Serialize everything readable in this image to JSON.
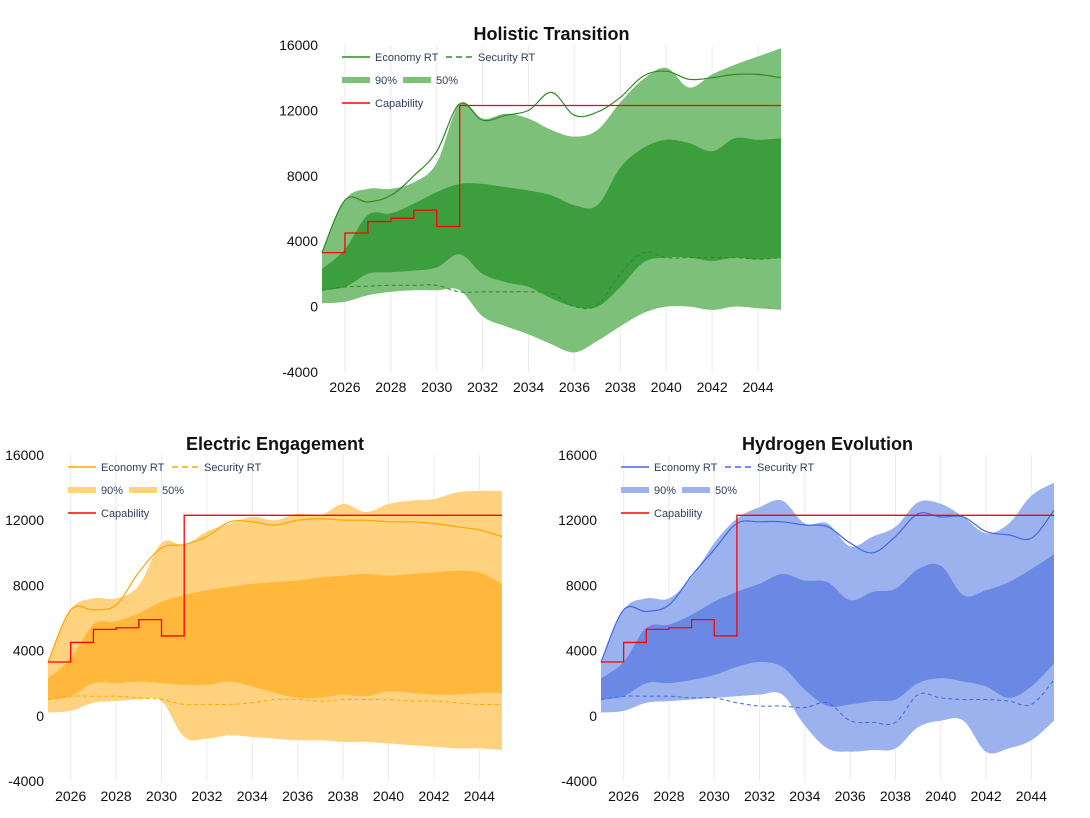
{
  "legend_labels": {
    "economy": "Economy RT",
    "security": "Security RT",
    "p90": "90%",
    "p50": "50%",
    "capability": "Capability"
  },
  "colors": {
    "capability": "#ff0000"
  },
  "chart_data": [
    {
      "type": "line",
      "title": "Holistic Transition",
      "xlabel": "",
      "ylabel": "",
      "xlim": [
        2025,
        2045
      ],
      "ylim": [
        -4000,
        16000
      ],
      "xticks": [
        2026,
        2028,
        2030,
        2032,
        2034,
        2036,
        2038,
        2040,
        2042,
        2044
      ],
      "yticks": [
        16000,
        12000,
        8000,
        4000,
        0,
        -4000
      ],
      "legend_position": "top-left",
      "colors": {
        "line": "#2e8b23",
        "band90": "#7cc07a",
        "band50": "#3c9e3c"
      },
      "x": [
        2025,
        2026,
        2027,
        2028,
        2029,
        2030,
        2031,
        2032,
        2033,
        2034,
        2035,
        2036,
        2037,
        2038,
        2039,
        2040,
        2041,
        2042,
        2043,
        2044,
        2045
      ],
      "band90": {
        "upper": [
          3300,
          6500,
          7200,
          7200,
          7600,
          8800,
          12400,
          11500,
          11800,
          11500,
          10800,
          10400,
          10800,
          12500,
          13900,
          14600,
          13400,
          14200,
          14800,
          15300,
          15800
        ],
        "lower": [
          200,
          300,
          700,
          900,
          1000,
          1000,
          1000,
          -600,
          -1200,
          -1700,
          -2300,
          -2800,
          -2100,
          -1200,
          -400,
          0,
          0,
          -200,
          0,
          -100,
          -200
        ]
      },
      "band50": {
        "upper": [
          2300,
          3500,
          5600,
          5700,
          6300,
          7000,
          7500,
          7500,
          7300,
          7100,
          6800,
          6200,
          6200,
          8500,
          9700,
          10200,
          10000,
          9500,
          10300,
          10200,
          10300
        ],
        "lower": [
          1000,
          1200,
          2000,
          2100,
          2200,
          2400,
          3200,
          2000,
          1500,
          1200,
          500,
          0,
          0,
          1200,
          2700,
          3000,
          3000,
          2800,
          3000,
          2900,
          3000
        ]
      },
      "economy_rt": [
        3300,
        6500,
        6400,
        6800,
        8000,
        9500,
        12400,
        11400,
        11700,
        12000,
        13100,
        11700,
        11900,
        12800,
        14100,
        14400,
        13900,
        14000,
        14200,
        14200,
        14000
      ],
      "security_rt": [
        1000,
        1200,
        1250,
        1300,
        1300,
        1300,
        900,
        900,
        900,
        900,
        800,
        0,
        100,
        2000,
        3300,
        3000,
        3000,
        3000,
        3000,
        2900,
        3000
      ],
      "capability": [
        3300,
        4500,
        5200,
        5400,
        5900,
        4900,
        12300,
        12300,
        12300,
        12300,
        12300,
        12300,
        12300,
        12300,
        12300,
        12300,
        12300,
        12300,
        12300,
        12300,
        12300
      ]
    },
    {
      "type": "line",
      "title": "Electric Engagement",
      "xlabel": "",
      "ylabel": "",
      "xlim": [
        2025,
        2045
      ],
      "ylim": [
        -4000,
        16000
      ],
      "xticks": [
        2026,
        2028,
        2030,
        2032,
        2034,
        2036,
        2038,
        2040,
        2042,
        2044
      ],
      "yticks": [
        16000,
        12000,
        8000,
        4000,
        0,
        -4000
      ],
      "legend_position": "top-left",
      "colors": {
        "line": "#ffa500",
        "band90": "#ffd27f",
        "band50": "#ffb83c"
      },
      "x": [
        2025,
        2026,
        2027,
        2028,
        2029,
        2030,
        2031,
        2032,
        2033,
        2034,
        2035,
        2036,
        2037,
        2038,
        2039,
        2040,
        2041,
        2042,
        2043,
        2044,
        2045
      ],
      "band90": {
        "upper": [
          3300,
          6500,
          7200,
          7200,
          8000,
          10600,
          10500,
          11300,
          11800,
          12200,
          12000,
          12400,
          12300,
          13000,
          12500,
          13000,
          13200,
          13300,
          13700,
          13800,
          13800
        ],
        "lower": [
          200,
          300,
          800,
          900,
          1000,
          900,
          -1300,
          -1400,
          -1200,
          -1300,
          -1400,
          -1500,
          -1500,
          -1600,
          -1600,
          -1700,
          -1800,
          -1900,
          -2000,
          -2000,
          -2100
        ]
      },
      "band50": {
        "upper": [
          2300,
          3500,
          5600,
          5800,
          6300,
          7000,
          7400,
          7700,
          7900,
          8100,
          8200,
          8300,
          8500,
          8600,
          8700,
          8600,
          8700,
          8800,
          8900,
          8800,
          8100
        ],
        "lower": [
          1000,
          1200,
          2000,
          2000,
          2100,
          2000,
          1900,
          1900,
          2100,
          1800,
          1400,
          1100,
          1100,
          1300,
          1200,
          1500,
          1400,
          1300,
          1300,
          1400,
          1400
        ]
      },
      "economy_rt": [
        3300,
        6500,
        6500,
        6800,
        8800,
        10300,
        10500,
        11000,
        11900,
        11900,
        11700,
        12000,
        12100,
        12000,
        12000,
        11900,
        11900,
        11800,
        11600,
        11400,
        11000
      ],
      "security_rt": [
        1000,
        1200,
        1200,
        1200,
        1100,
        1000,
        700,
        700,
        700,
        800,
        1000,
        1000,
        900,
        1000,
        1000,
        1000,
        900,
        900,
        800,
        700,
        700
      ],
      "capability": [
        3300,
        4500,
        5300,
        5400,
        5900,
        4900,
        12300,
        12300,
        12300,
        12300,
        12300,
        12300,
        12300,
        12300,
        12300,
        12300,
        12300,
        12300,
        12300,
        12300,
        12300
      ]
    },
    {
      "type": "line",
      "title": "Hydrogen Evolution",
      "xlabel": "",
      "ylabel": "",
      "xlim": [
        2025,
        2045
      ],
      "ylim": [
        -4000,
        16000
      ],
      "xticks": [
        2026,
        2028,
        2030,
        2032,
        2034,
        2036,
        2038,
        2040,
        2042,
        2044
      ],
      "yticks": [
        16000,
        12000,
        8000,
        4000,
        0,
        -4000
      ],
      "legend_position": "top-left",
      "colors": {
        "line": "#4169e1",
        "band90": "#9cb2ee",
        "band50": "#6b89e4"
      },
      "x": [
        2025,
        2026,
        2027,
        2028,
        2029,
        2030,
        2031,
        2032,
        2033,
        2034,
        2035,
        2036,
        2037,
        2038,
        2039,
        2040,
        2041,
        2042,
        2043,
        2044,
        2045
      ],
      "band90": {
        "upper": [
          3300,
          6500,
          7200,
          7200,
          8500,
          10600,
          12100,
          12800,
          13200,
          11800,
          11800,
          10400,
          11000,
          11600,
          13100,
          13000,
          12200,
          11200,
          11800,
          13500,
          14300
        ],
        "lower": [
          200,
          300,
          800,
          900,
          1000,
          1100,
          1200,
          1300,
          1300,
          -600,
          -2000,
          -2200,
          -2100,
          -2000,
          -700,
          -300,
          -300,
          -2200,
          -2000,
          -1500,
          -300
        ]
      },
      "band50": {
        "upper": [
          2300,
          3300,
          5400,
          5600,
          6200,
          7000,
          7600,
          8100,
          8700,
          8300,
          8200,
          7100,
          7600,
          7800,
          9000,
          9200,
          7400,
          7700,
          8200,
          9000,
          9900
        ],
        "lower": [
          1000,
          1200,
          2000,
          2000,
          2200,
          2500,
          3000,
          3300,
          3000,
          1600,
          600,
          700,
          900,
          1000,
          2000,
          2300,
          2100,
          1800,
          1100,
          1800,
          3200
        ]
      },
      "economy_rt": [
        3300,
        6500,
        6400,
        6800,
        8600,
        10200,
        11800,
        11900,
        11900,
        11700,
        11600,
        10600,
        10000,
        11000,
        12400,
        12200,
        12200,
        11300,
        11100,
        10900,
        12600
      ],
      "security_rt": [
        1000,
        1200,
        1200,
        1200,
        1100,
        1100,
        800,
        600,
        600,
        500,
        800,
        -300,
        -400,
        -400,
        1300,
        1100,
        1000,
        1000,
        900,
        700,
        2200
      ],
      "capability": [
        3300,
        4500,
        5300,
        5400,
        5900,
        4900,
        12300,
        12300,
        12300,
        12300,
        12300,
        12300,
        12300,
        12300,
        12300,
        12300,
        12300,
        12300,
        12300,
        12300,
        12300
      ]
    }
  ]
}
